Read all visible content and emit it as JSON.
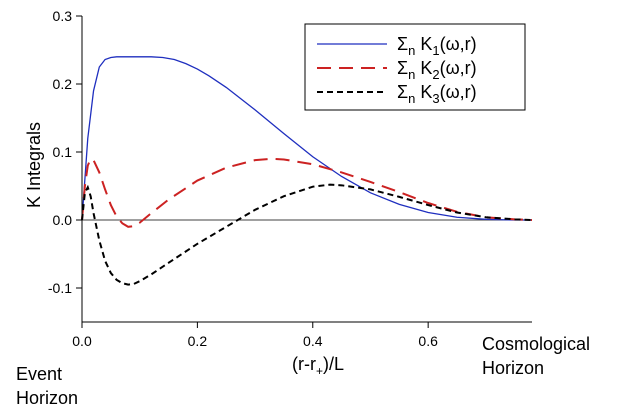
{
  "chart_data": {
    "type": "line",
    "title": "",
    "xlabel": "(r-r+)/L",
    "ylabel": "K Integrals",
    "xlim": [
      0,
      0.78
    ],
    "ylim": [
      -0.15,
      0.3
    ],
    "x_ticks": [
      {
        "value": 0.0,
        "label": "0.0"
      },
      {
        "value": 0.2,
        "label": "0.2"
      },
      {
        "value": 0.4,
        "label": "0.4"
      },
      {
        "value": 0.6,
        "label": "0.6"
      }
    ],
    "y_ticks": [
      {
        "value": 0.3,
        "label": "0.3"
      },
      {
        "value": 0.2,
        "label": "0.2"
      },
      {
        "value": 0.1,
        "label": "0.1"
      },
      {
        "value": 0.0,
        "label": "0.0"
      },
      {
        "value": -0.1,
        "label": "-0.1"
      }
    ],
    "zero_line": true,
    "grid": false,
    "legend_position": "top-right",
    "annotations": {
      "left": [
        "Event",
        "Horizon"
      ],
      "right": [
        "Cosmological",
        "Horizon"
      ]
    },
    "series": [
      {
        "name": "Σn K1(ω,r)",
        "color": "#1f2fbf",
        "dash": "solid",
        "x": [
          0,
          0.01,
          0.02,
          0.03,
          0.04,
          0.05,
          0.06,
          0.08,
          0.1,
          0.12,
          0.14,
          0.16,
          0.18,
          0.2,
          0.22,
          0.25,
          0.3,
          0.35,
          0.4,
          0.45,
          0.5,
          0.55,
          0.6,
          0.65,
          0.7,
          0.75,
          0.78
        ],
        "y": [
          0,
          0.12,
          0.19,
          0.225,
          0.236,
          0.239,
          0.24,
          0.24,
          0.24,
          0.24,
          0.239,
          0.236,
          0.23,
          0.222,
          0.212,
          0.195,
          0.162,
          0.127,
          0.093,
          0.064,
          0.04,
          0.023,
          0.011,
          0.004,
          0.001,
          0.0,
          0.0
        ]
      },
      {
        "name": "Σn K2(ω,r)",
        "color": "#cc2222",
        "dash": "longdash",
        "x": [
          0,
          0.005,
          0.01,
          0.015,
          0.02,
          0.03,
          0.04,
          0.05,
          0.06,
          0.07,
          0.08,
          0.09,
          0.1,
          0.12,
          0.15,
          0.2,
          0.25,
          0.3,
          0.33,
          0.35,
          0.4,
          0.45,
          0.5,
          0.55,
          0.6,
          0.65,
          0.7,
          0.75,
          0.78
        ],
        "y": [
          0,
          0.05,
          0.08,
          0.09,
          0.088,
          0.07,
          0.045,
          0.022,
          0.005,
          -0.005,
          -0.01,
          -0.009,
          -0.004,
          0.01,
          0.03,
          0.058,
          0.077,
          0.088,
          0.09,
          0.089,
          0.082,
          0.07,
          0.056,
          0.041,
          0.025,
          0.012,
          0.004,
          0.001,
          0.0
        ]
      },
      {
        "name": "Σn K3(ω,r)",
        "color": "#000000",
        "dash": "shortdash",
        "x": [
          0,
          0.005,
          0.01,
          0.015,
          0.02,
          0.03,
          0.04,
          0.05,
          0.06,
          0.07,
          0.08,
          0.09,
          0.1,
          0.12,
          0.15,
          0.2,
          0.25,
          0.3,
          0.35,
          0.4,
          0.43,
          0.45,
          0.5,
          0.55,
          0.6,
          0.65,
          0.7,
          0.75,
          0.78
        ],
        "y": [
          0,
          0.04,
          0.048,
          0.035,
          0.01,
          -0.03,
          -0.06,
          -0.078,
          -0.088,
          -0.093,
          -0.095,
          -0.094,
          -0.09,
          -0.08,
          -0.063,
          -0.035,
          -0.01,
          0.015,
          0.035,
          0.049,
          0.052,
          0.051,
          0.045,
          0.034,
          0.022,
          0.011,
          0.004,
          0.001,
          0.0
        ]
      }
    ]
  }
}
